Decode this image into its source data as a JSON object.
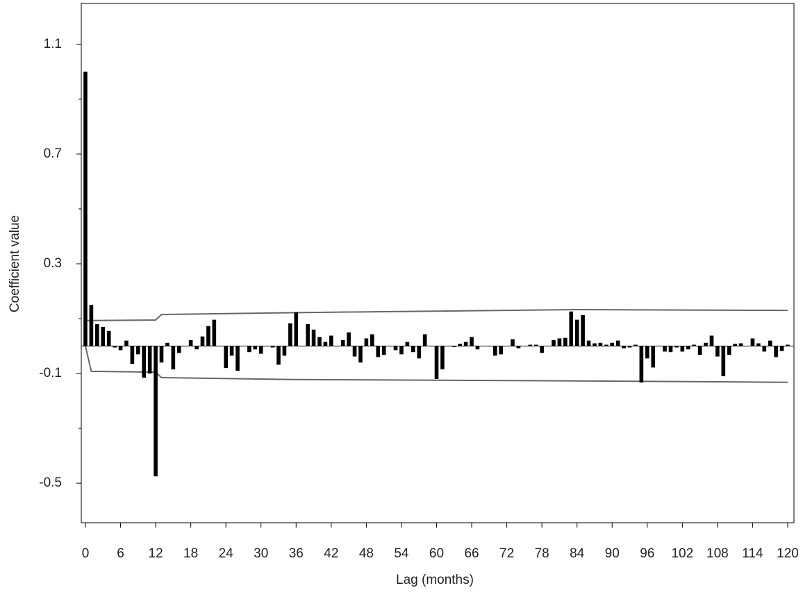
{
  "chart_data": {
    "type": "bar",
    "xlabel": "Lag (months)",
    "ylabel": "Coefficient value",
    "color": "#000000",
    "band_color": "#666666",
    "x": [
      0,
      1,
      2,
      3,
      4,
      5,
      6,
      7,
      8,
      9,
      10,
      11,
      12,
      13,
      14,
      15,
      16,
      17,
      18,
      19,
      20,
      21,
      22,
      23,
      24,
      25,
      26,
      27,
      28,
      29,
      30,
      31,
      32,
      33,
      34,
      35,
      36,
      37,
      38,
      39,
      40,
      41,
      42,
      43,
      44,
      45,
      46,
      47,
      48,
      49,
      50,
      51,
      52,
      53,
      54,
      55,
      56,
      57,
      58,
      59,
      60,
      61,
      62,
      63,
      64,
      65,
      66,
      67,
      68,
      69,
      70,
      71,
      72,
      73,
      74,
      75,
      76,
      77,
      78,
      79,
      80,
      81,
      82,
      83,
      84,
      85,
      86,
      87,
      88,
      89,
      90,
      91,
      92,
      93,
      94,
      95,
      96,
      97,
      98,
      99,
      100,
      101,
      102,
      103,
      104,
      105,
      106,
      107,
      108,
      109,
      110,
      111,
      112,
      113,
      114,
      115,
      116,
      117,
      118,
      119,
      120
    ],
    "values": [
      1.0,
      0.15,
      0.08,
      0.07,
      0.055,
      -0.005,
      -0.015,
      0.02,
      -0.065,
      -0.03,
      -0.115,
      -0.1,
      -0.475,
      -0.06,
      0.012,
      -0.085,
      -0.025,
      0.0,
      0.022,
      -0.012,
      0.035,
      0.073,
      0.096,
      0.0,
      -0.08,
      -0.035,
      -0.09,
      0.0,
      -0.022,
      -0.012,
      -0.028,
      0.0,
      -0.005,
      -0.068,
      -0.035,
      0.083,
      0.123,
      0.0,
      0.08,
      0.06,
      0.033,
      0.015,
      0.038,
      0.0,
      0.022,
      0.05,
      -0.038,
      -0.06,
      0.028,
      0.043,
      -0.04,
      -0.032,
      0.0,
      -0.015,
      -0.03,
      0.015,
      -0.022,
      -0.045,
      0.043,
      0.0,
      -0.12,
      -0.085,
      0.0,
      -0.003,
      0.008,
      0.015,
      0.033,
      -0.012,
      0.0,
      0.0,
      -0.035,
      -0.03,
      0.0,
      0.025,
      -0.008,
      0.0,
      0.005,
      0.005,
      -0.025,
      0.0,
      0.022,
      0.028,
      0.03,
      0.126,
      0.096,
      0.113,
      0.02,
      0.01,
      0.012,
      0.005,
      0.012,
      0.02,
      -0.008,
      -0.005,
      0.005,
      -0.133,
      -0.045,
      -0.078,
      0.0,
      -0.02,
      -0.022,
      -0.005,
      -0.02,
      -0.012,
      0.005,
      -0.032,
      0.012,
      0.038,
      -0.038,
      -0.11,
      -0.032,
      0.008,
      0.01,
      0.0,
      0.028,
      0.01,
      -0.02,
      0.02,
      -0.04,
      -0.018,
      0.005
    ],
    "upper_band": {
      "x": [
        0,
        1,
        12,
        13,
        36,
        84,
        120
      ],
      "values": [
        0.093,
        0.093,
        0.095,
        0.115,
        0.122,
        0.133,
        0.13
      ]
    },
    "lower_band": {
      "x": [
        0,
        1,
        12,
        13,
        36,
        84,
        120
      ],
      "values": [
        0,
        -0.092,
        -0.095,
        -0.115,
        -0.122,
        -0.127,
        -0.132
      ]
    },
    "xlim": [
      -0.71,
      121.07
    ],
    "ylim": [
      -0.644,
      1.249
    ],
    "xticks": [
      0,
      6,
      12,
      18,
      24,
      30,
      36,
      42,
      48,
      54,
      60,
      66,
      72,
      78,
      84,
      90,
      96,
      102,
      108,
      114,
      120
    ],
    "yticks": [
      -0.5,
      -0.1,
      0.3,
      0.7,
      1.1
    ],
    "yminor": [
      -0.3,
      0.1,
      0.5,
      0.9
    ]
  }
}
